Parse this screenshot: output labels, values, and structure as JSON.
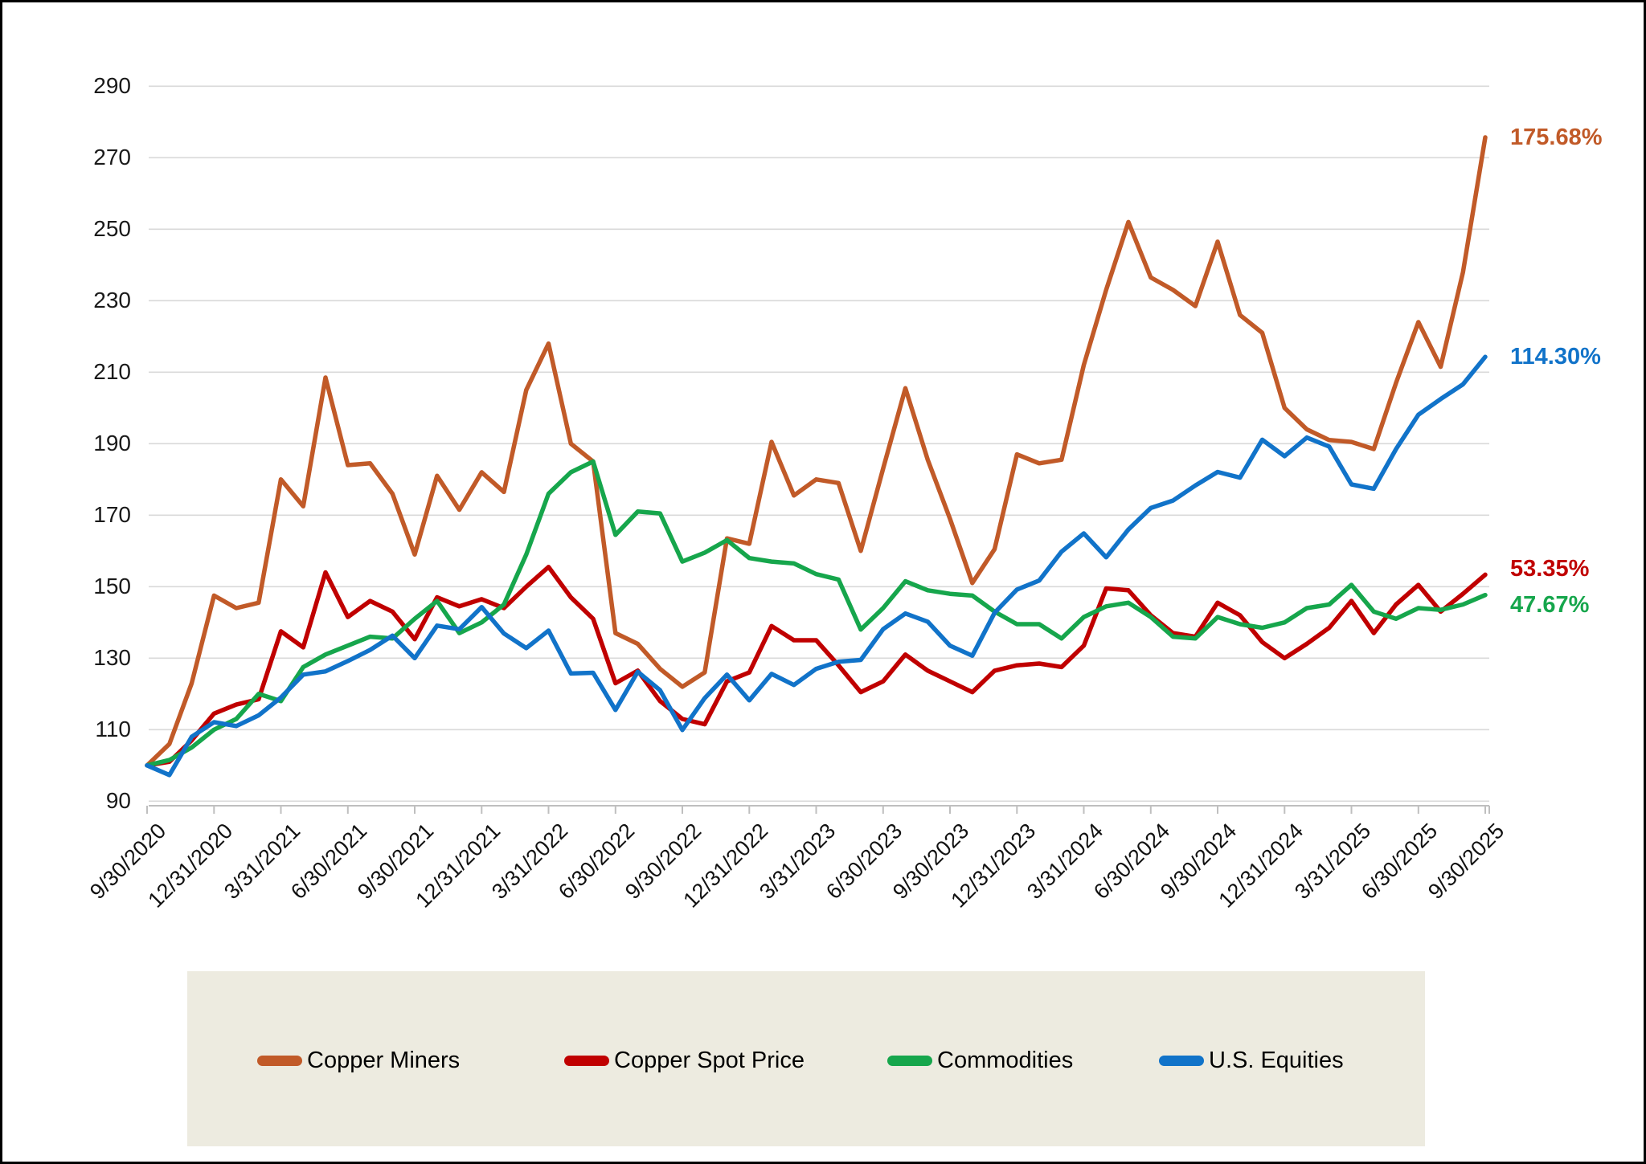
{
  "chart_data": {
    "type": "line",
    "grid": "horizontal",
    "legend_position": "bottom",
    "x_start": "9/30/2020",
    "x_end": "9/30/2025",
    "x_frequency": "monthly",
    "x_tick_labels": [
      "9/30/2020",
      "12/31/2020",
      "3/31/2021",
      "6/30/2021",
      "9/30/2021",
      "12/31/2021",
      "3/31/2022",
      "6/30/2022",
      "9/30/2022",
      "12/31/2022",
      "3/31/2023",
      "6/30/2023",
      "9/30/2023",
      "12/31/2023",
      "3/31/2024",
      "6/30/2024",
      "9/30/2024",
      "12/31/2024",
      "3/31/2025",
      "6/30/2025",
      "9/30/2025"
    ],
    "points_per_tick": 3,
    "y_ticks": [
      90,
      110,
      130,
      150,
      170,
      190,
      210,
      230,
      250,
      270,
      290
    ],
    "ylim": [
      90,
      290
    ],
    "base_value": 100,
    "series": [
      {
        "name": "Copper Miners",
        "color": "#c15a28",
        "end_label": "175.68%",
        "values": [
          100,
          106,
          123,
          147.5,
          144,
          145.5,
          180,
          172.5,
          208.5,
          184,
          184.5,
          176,
          159,
          181,
          171.5,
          182,
          176.5,
          205,
          218,
          190,
          185,
          137,
          134,
          127,
          122,
          126,
          163.5,
          162,
          190.5,
          175.5,
          180,
          179,
          160,
          183,
          205.5,
          185.5,
          169,
          151,
          160.5,
          187,
          184.5,
          185.5,
          212,
          233,
          252,
          236.5,
          233,
          228.5,
          246.5,
          226,
          221,
          200,
          194,
          191,
          190.5,
          188.5,
          207,
          224,
          211.5,
          238,
          275.68
        ]
      },
      {
        "name": "Copper Spot Price",
        "color": "#c00000",
        "end_label": "53.35%",
        "values": [
          100,
          101,
          107,
          114.5,
          117,
          118.5,
          137.5,
          133,
          154,
          141.5,
          146,
          143,
          135.3,
          147,
          144.5,
          146.5,
          144,
          150,
          155.5,
          147,
          141,
          123,
          126.5,
          118,
          113,
          111.5,
          123.5,
          126,
          139,
          135,
          135,
          128,
          120.5,
          123.5,
          131,
          126.5,
          123.5,
          120.5,
          126.5,
          128,
          128.5,
          127.5,
          133.5,
          149.5,
          149,
          142,
          137,
          136,
          145.5,
          142,
          134.5,
          130,
          134,
          138.5,
          146,
          137,
          145,
          150.5,
          143,
          148,
          153.35
        ]
      },
      {
        "name": "Commodities",
        "color": "#16a64c",
        "end_label": "47.67%",
        "values": [
          100,
          101.5,
          105,
          110,
          113,
          120,
          118,
          127.5,
          131,
          133.5,
          136,
          135.5,
          141,
          146,
          137,
          140,
          145,
          159,
          176,
          182,
          185,
          164.5,
          171,
          170.5,
          157,
          159.5,
          163,
          158,
          157,
          156.5,
          153.5,
          152,
          138,
          144,
          151.5,
          149,
          148,
          147.5,
          143,
          139.5,
          139.5,
          135.5,
          141.5,
          144.5,
          145.5,
          141.5,
          136,
          135.5,
          141.5,
          139.5,
          138.5,
          140,
          144,
          145,
          150.5,
          143,
          141,
          144,
          143.5,
          145,
          147.67
        ]
      },
      {
        "name": "U.S. Equities",
        "color": "#1173c9",
        "end_label": "114.30%",
        "values": [
          100,
          97.3,
          108,
          112.1,
          111,
          114,
          119,
          125.4,
          126.3,
          129.2,
          132.3,
          136.3,
          130,
          139.1,
          138.1,
          144.3,
          136.9,
          132.8,
          137.7,
          125.7,
          125.9,
          115.5,
          126.2,
          121,
          109.9,
          118.8,
          125.4,
          118.2,
          125.6,
          122.5,
          127,
          129,
          129.5,
          138.1,
          142.5,
          140.2,
          133.5,
          130.7,
          142.7,
          149.2,
          151.7,
          159.8,
          164.9,
          158.2,
          166,
          172,
          174.1,
          178.3,
          182.1,
          180.5,
          191.1,
          186.5,
          191.7,
          189.2,
          178.6,
          177.4,
          188.5,
          198.1,
          202.5,
          206.6,
          214.3
        ]
      }
    ],
    "end_labels_text": [
      "175.68%",
      "53.35%",
      "47.67%",
      "114.30%"
    ]
  },
  "colors": {
    "gridline": "#d9d9d9",
    "axis": "#bfbfbf",
    "legend_band": "#edebe0",
    "text": "#1a1a1a"
  }
}
